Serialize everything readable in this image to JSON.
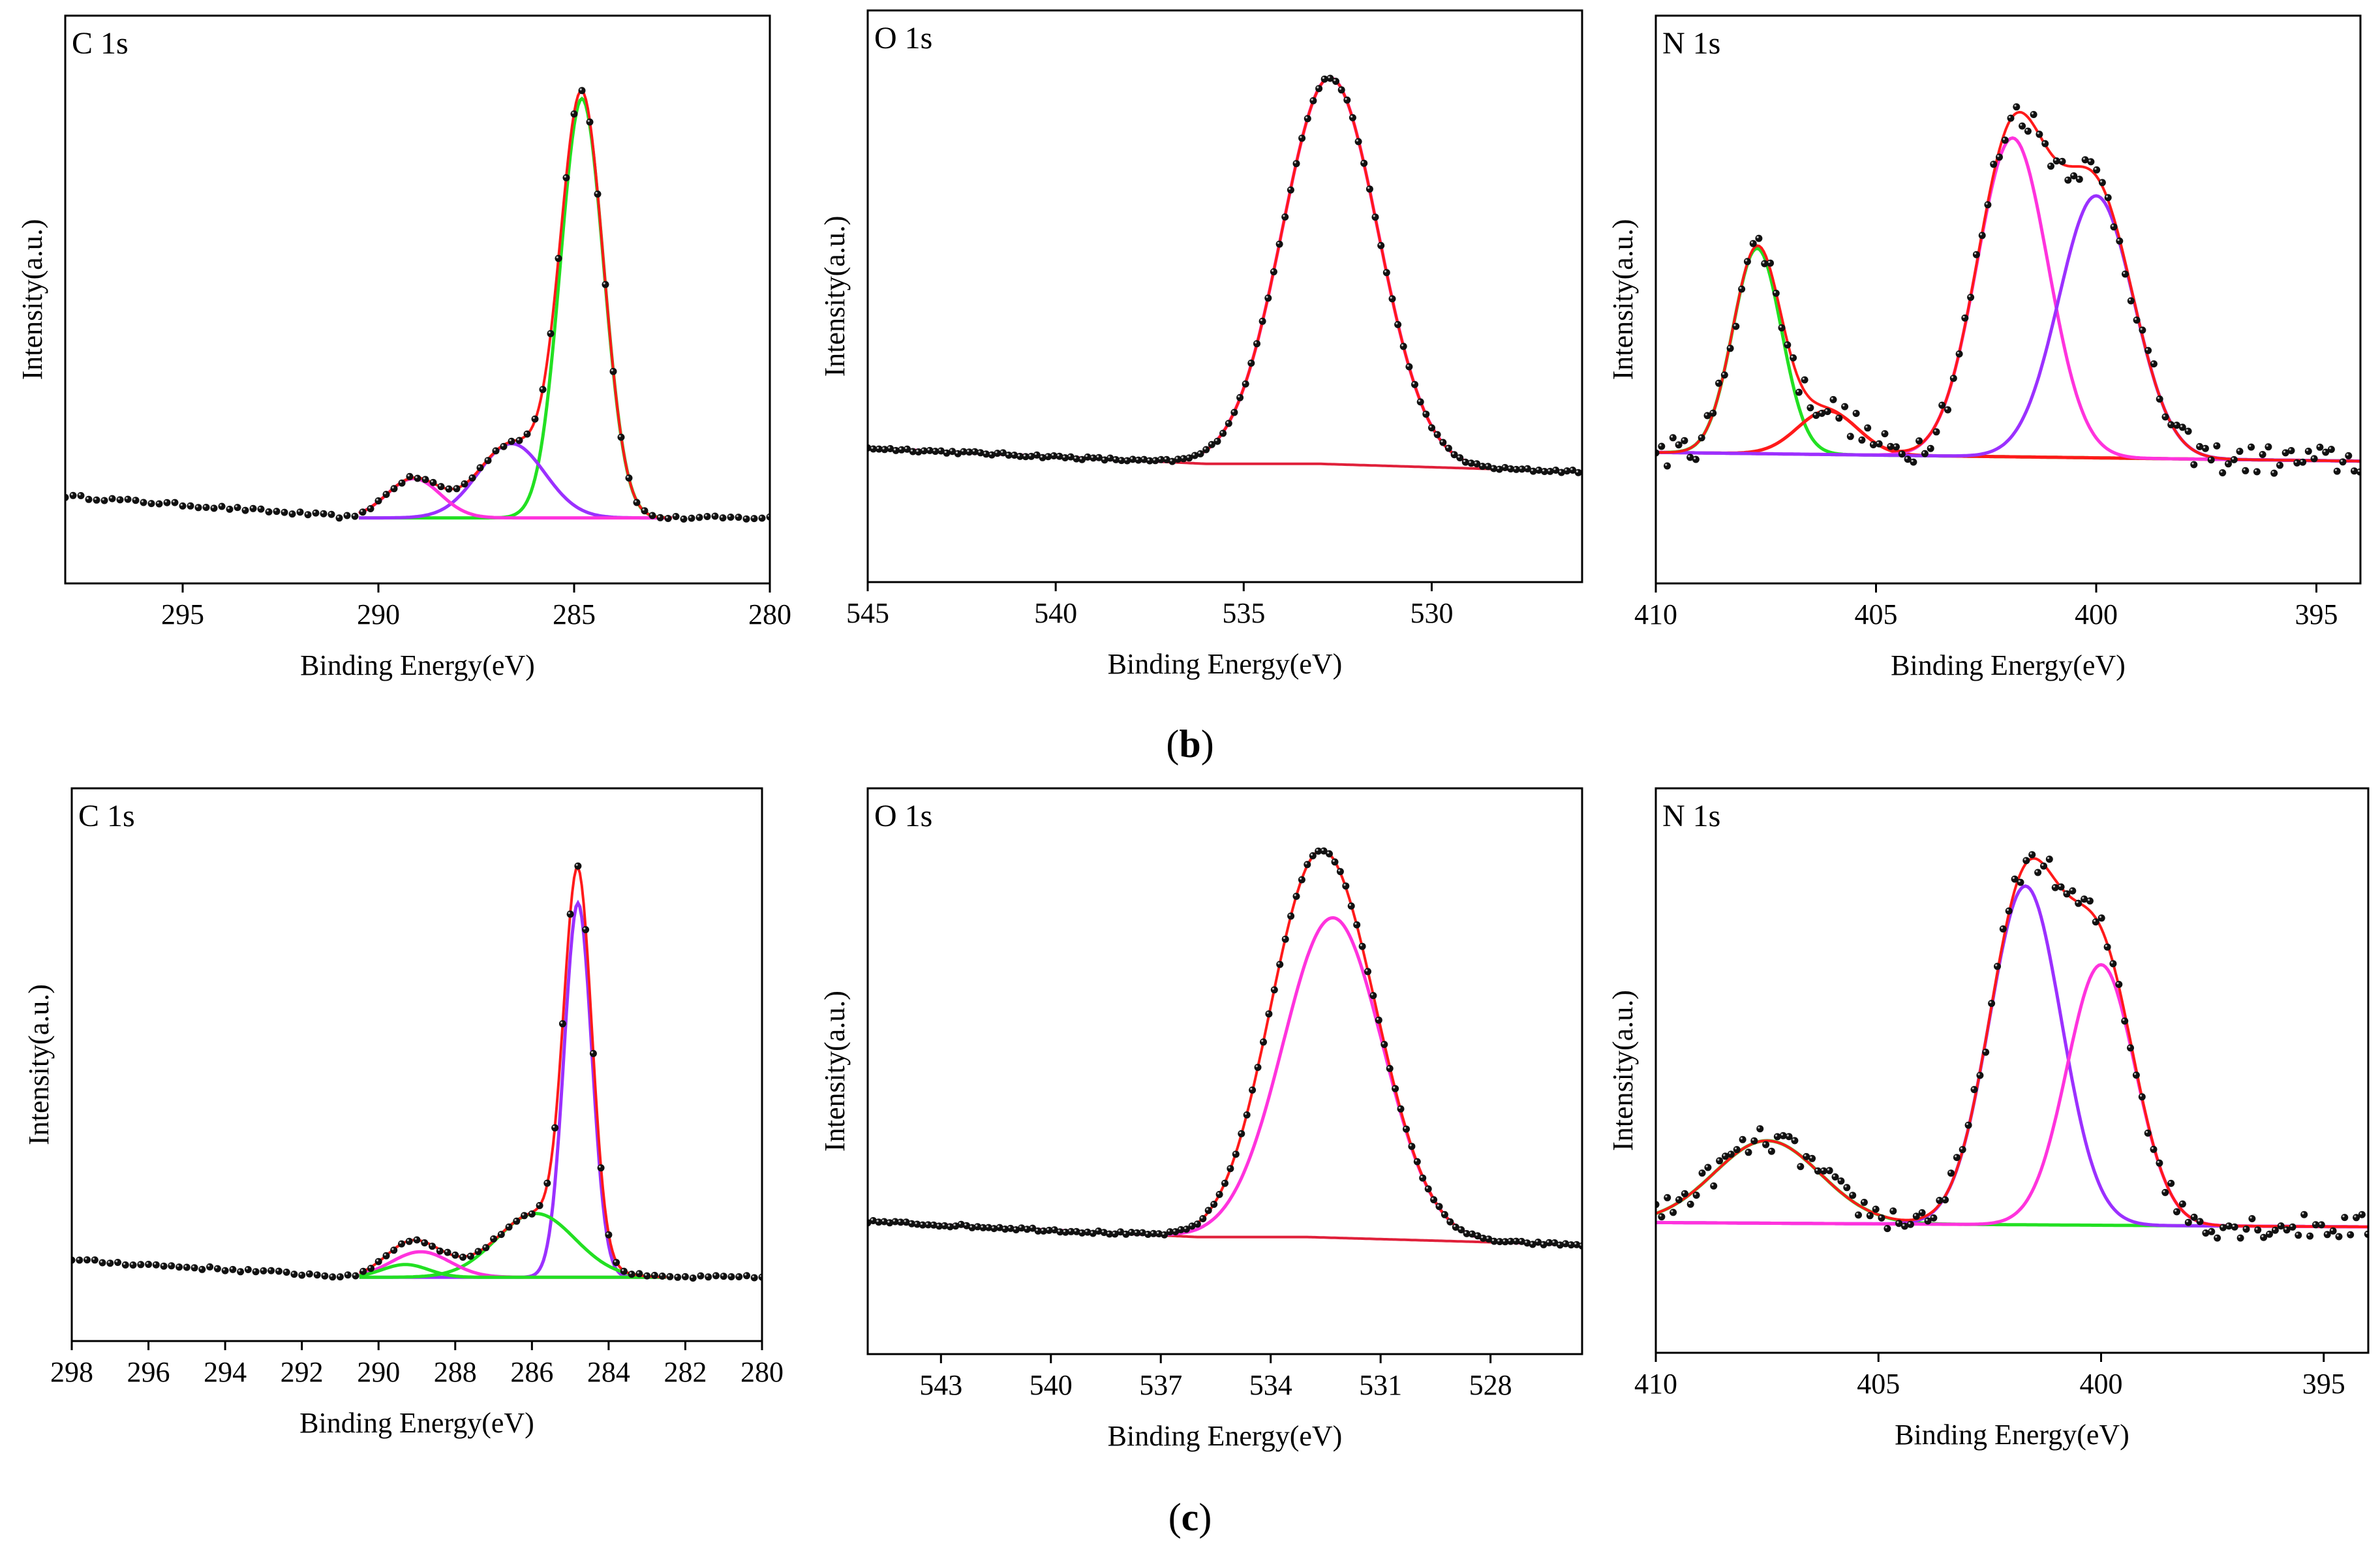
{
  "figure": {
    "caption_b": "b",
    "caption_c": "c",
    "xlabel": "Binding Energy(eV)",
    "ylabel": "Intensity(a.u.)"
  },
  "colors": {
    "data": "#000000",
    "envelope": "#ff1a1a",
    "green": "#22e022",
    "magenta": "#ff33dd",
    "violet": "#9b30ff",
    "baseline_red": "#e0203a",
    "baseline_olive": "#8b4513"
  },
  "chart_data": [
    {
      "id": "b-C1s",
      "type": "line",
      "title": "C 1s",
      "xlabel": "Binding Energy(eV)",
      "ylabel": "Intensity(a.u.)",
      "xlim": [
        298,
        280
      ],
      "ylim": [
        -0.15,
        1.15
      ],
      "xticks": [
        295,
        290,
        285,
        280
      ],
      "fit_range": [
        290.5,
        282.5
      ],
      "background": [
        [
          298,
          0.05
        ],
        [
          290.5,
          0.0
        ],
        [
          280,
          0.0
        ]
      ],
      "background_color": "#7a1050",
      "peaks": [
        {
          "center": 284.8,
          "height": 0.96,
          "fwhm": 1.3,
          "color": "green"
        },
        {
          "center": 286.6,
          "height": 0.17,
          "fwhm": 2.0,
          "color": "violet"
        },
        {
          "center": 289.1,
          "height": 0.09,
          "fwhm": 1.6,
          "color": "magenta"
        }
      ],
      "data_range": [
        298,
        280
      ],
      "data_step": 0.2,
      "noise": 0.004
    },
    {
      "id": "b-O1s",
      "type": "line",
      "title": "O 1s",
      "xlabel": "Binding Energy(eV)",
      "ylabel": "Intensity(a.u.)",
      "xlim": [
        545,
        526
      ],
      "ylim": [
        -0.3,
        1.15
      ],
      "xticks": [
        545,
        540,
        535,
        530
      ],
      "fit_range": [
        545,
        526
      ],
      "background": [
        [
          545,
          0.04
        ],
        [
          536,
          0.0
        ],
        [
          533,
          0.0
        ],
        [
          526,
          -0.02
        ]
      ],
      "background_color": "#e0203a",
      "peaks": [
        {
          "center": 532.7,
          "height": 0.98,
          "fwhm": 3.0,
          "color": "magenta"
        }
      ],
      "data_range": [
        545,
        526
      ],
      "data_step": 0.15,
      "noise": 0.004
    },
    {
      "id": "b-N1s",
      "type": "line",
      "title": "N 1s",
      "xlabel": "Binding Energy(eV)",
      "ylabel": "Intensity(a.u.)",
      "xlim": [
        410,
        394
      ],
      "ylim": [
        -0.3,
        1.0
      ],
      "xticks": [
        410,
        405,
        400,
        395
      ],
      "fit_range": [
        410,
        394
      ],
      "background": [
        [
          410,
          0.0
        ],
        [
          394,
          -0.02
        ]
      ],
      "background_color": "#e0203a",
      "peaks": [
        {
          "center": 407.7,
          "height": 0.47,
          "fwhm": 1.3,
          "color": "green"
        },
        {
          "center": 406.1,
          "height": 0.1,
          "fwhm": 1.6,
          "color": "envelope"
        },
        {
          "center": 401.9,
          "height": 0.73,
          "fwhm": 1.9,
          "color": "magenta"
        },
        {
          "center": 400.0,
          "height": 0.6,
          "fwhm": 2.0,
          "color": "violet"
        }
      ],
      "data_range": [
        410,
        394
      ],
      "data_step": 0.13,
      "noise": 0.035
    },
    {
      "id": "c-C1s",
      "type": "line",
      "title": "C 1s",
      "xlabel": "Binding Energy(eV)",
      "ylabel": "Intensity(a.u.)",
      "xlim": [
        298,
        280
      ],
      "ylim": [
        -0.15,
        1.15
      ],
      "xticks": [
        298,
        296,
        294,
        292,
        290,
        288,
        286,
        284,
        282,
        280
      ],
      "fit_range": [
        290.5,
        282.5
      ],
      "background": [
        [
          298,
          0.04
        ],
        [
          290.5,
          0.0
        ],
        [
          280,
          0.0
        ]
      ],
      "background_color": "#8b4513",
      "peaks": [
        {
          "center": 284.8,
          "height": 0.88,
          "fwhm": 0.85,
          "color": "violet"
        },
        {
          "center": 285.9,
          "height": 0.15,
          "fwhm": 2.4,
          "color": "green"
        },
        {
          "center": 288.9,
          "height": 0.06,
          "fwhm": 1.8,
          "color": "magenta"
        },
        {
          "center": 289.3,
          "height": 0.03,
          "fwhm": 1.4,
          "color": "green"
        }
      ],
      "data_range": [
        298,
        280
      ],
      "data_step": 0.2,
      "noise": 0.004
    },
    {
      "id": "c-O1s",
      "type": "line",
      "title": "O 1s",
      "xlabel": "Binding Energy(eV)",
      "ylabel": "Intensity(a.u.)",
      "xlim": [
        545,
        525.5
      ],
      "ylim": [
        -0.3,
        1.15
      ],
      "xticks": [
        543,
        540,
        537,
        534,
        531,
        528
      ],
      "fit_range": [
        545,
        525.5
      ],
      "background": [
        [
          545,
          0.04
        ],
        [
          536,
          0.0
        ],
        [
          533,
          0.0
        ],
        [
          525.5,
          -0.02
        ]
      ],
      "background_color": "#e0203a",
      "peaks": [
        {
          "center": 532.3,
          "height": 0.82,
          "fwhm": 3.2,
          "color": "magenta"
        },
        {
          "center": 533.4,
          "height": 0.25,
          "fwhm": 2.6,
          "color": "none"
        }
      ],
      "data_range": [
        545,
        525.5
      ],
      "data_step": 0.15,
      "noise": 0.004
    },
    {
      "id": "c-N1s",
      "type": "line",
      "title": "N 1s",
      "xlabel": "Binding Energy(eV)",
      "ylabel": "Intensity(a.u.)",
      "xlim": [
        410,
        394
      ],
      "ylim": [
        -0.3,
        1.0
      ],
      "xticks": [
        410,
        405,
        400,
        395
      ],
      "fit_range": [
        410,
        394
      ],
      "background": [
        [
          410,
          0.0
        ],
        [
          394,
          -0.01
        ]
      ],
      "background_color": "#22e022",
      "peaks": [
        {
          "center": 407.5,
          "height": 0.19,
          "fwhm": 2.8,
          "color": "green"
        },
        {
          "center": 401.7,
          "height": 0.78,
          "fwhm": 1.9,
          "color": "violet"
        },
        {
          "center": 400.0,
          "height": 0.6,
          "fwhm": 1.8,
          "color": "magenta"
        }
      ],
      "data_range": [
        410,
        394
      ],
      "data_step": 0.13,
      "noise": 0.03
    }
  ]
}
